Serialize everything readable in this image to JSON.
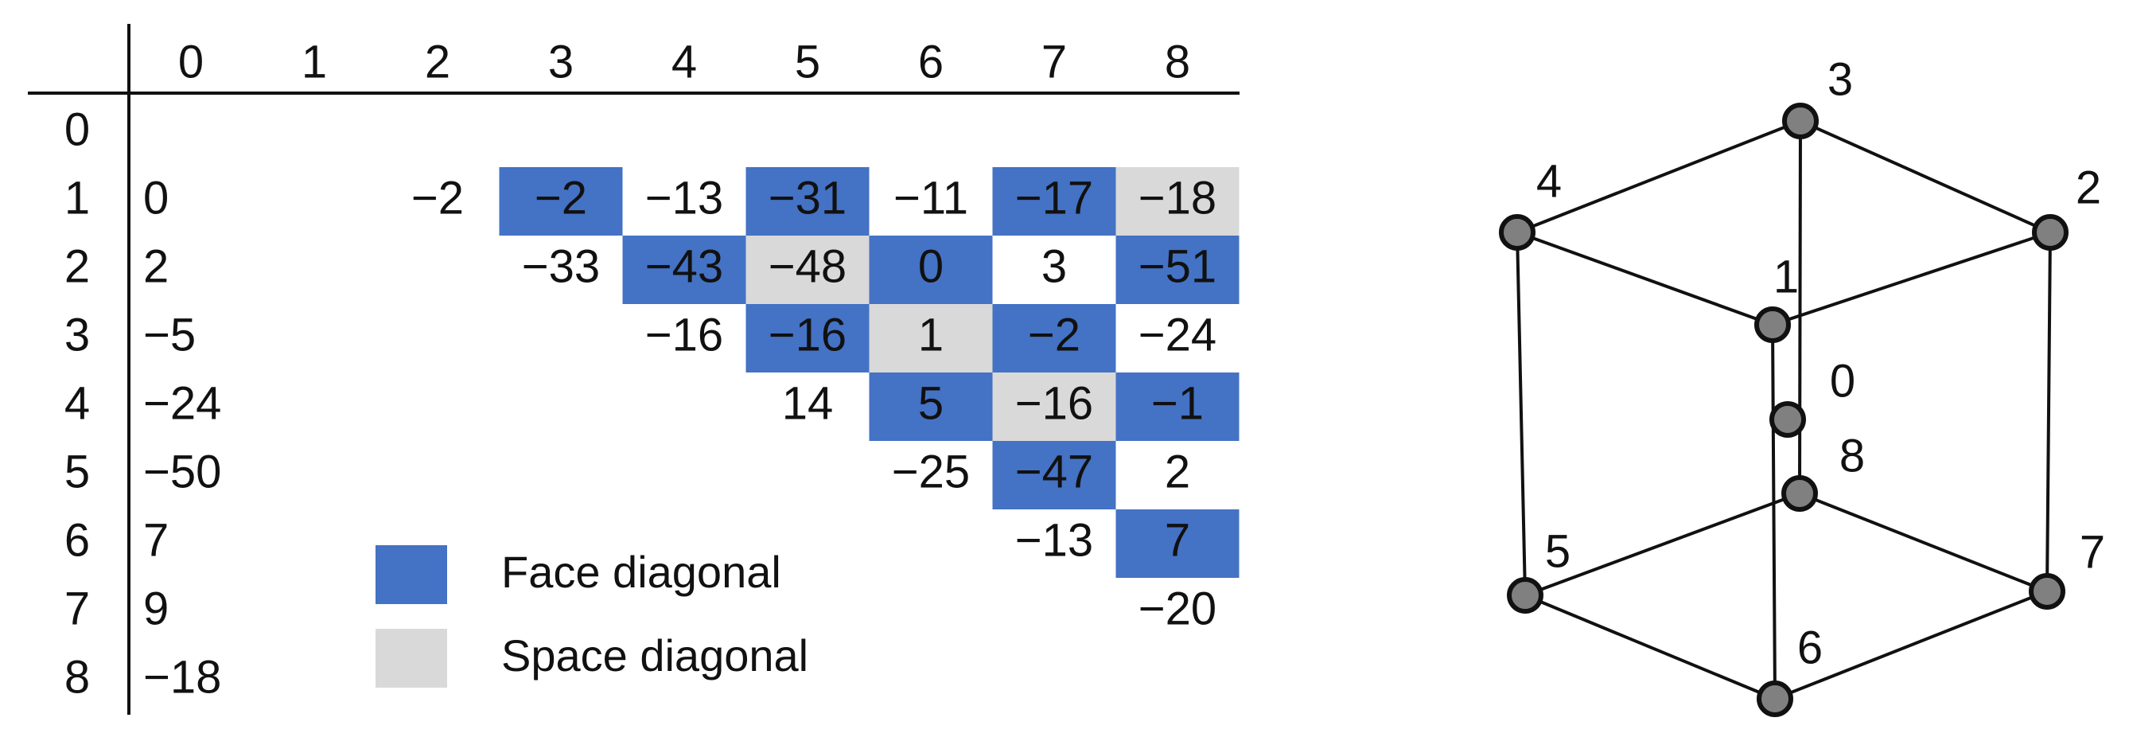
{
  "colors": {
    "face": "#4472C4",
    "space": "#D9D9D9",
    "line": "#111111",
    "node_fill": "#808080"
  },
  "table": {
    "col_headers": [
      "0",
      "1",
      "2",
      "3",
      "4",
      "5",
      "6",
      "7",
      "8"
    ],
    "row_headers": [
      "0",
      "1",
      "2",
      "3",
      "4",
      "5",
      "6",
      "7",
      "8"
    ],
    "cells": [
      {
        "row": 1,
        "col": 0,
        "value": "0",
        "type": "none"
      },
      {
        "row": 1,
        "col": 2,
        "value": "−2",
        "type": "none"
      },
      {
        "row": 1,
        "col": 3,
        "value": "−2",
        "type": "face"
      },
      {
        "row": 1,
        "col": 4,
        "value": "−13",
        "type": "none"
      },
      {
        "row": 1,
        "col": 5,
        "value": "−31",
        "type": "face"
      },
      {
        "row": 1,
        "col": 6,
        "value": "−11",
        "type": "none"
      },
      {
        "row": 1,
        "col": 7,
        "value": "−17",
        "type": "face"
      },
      {
        "row": 1,
        "col": 8,
        "value": "−18",
        "type": "space"
      },
      {
        "row": 2,
        "col": 0,
        "value": "2",
        "type": "none"
      },
      {
        "row": 2,
        "col": 3,
        "value": "−33",
        "type": "none"
      },
      {
        "row": 2,
        "col": 4,
        "value": "−43",
        "type": "face"
      },
      {
        "row": 2,
        "col": 5,
        "value": "−48",
        "type": "space"
      },
      {
        "row": 2,
        "col": 6,
        "value": "0",
        "type": "face"
      },
      {
        "row": 2,
        "col": 7,
        "value": "3",
        "type": "none"
      },
      {
        "row": 2,
        "col": 8,
        "value": "−51",
        "type": "face"
      },
      {
        "row": 3,
        "col": 0,
        "value": "−5",
        "type": "none"
      },
      {
        "row": 3,
        "col": 4,
        "value": "−16",
        "type": "none"
      },
      {
        "row": 3,
        "col": 5,
        "value": "−16",
        "type": "face"
      },
      {
        "row": 3,
        "col": 6,
        "value": "1",
        "type": "space"
      },
      {
        "row": 3,
        "col": 7,
        "value": "−2",
        "type": "face"
      },
      {
        "row": 3,
        "col": 8,
        "value": "−24",
        "type": "none"
      },
      {
        "row": 4,
        "col": 0,
        "value": "−24",
        "type": "none"
      },
      {
        "row": 4,
        "col": 5,
        "value": "14",
        "type": "none"
      },
      {
        "row": 4,
        "col": 6,
        "value": "5",
        "type": "face"
      },
      {
        "row": 4,
        "col": 7,
        "value": "−16",
        "type": "space"
      },
      {
        "row": 4,
        "col": 8,
        "value": "−1",
        "type": "face"
      },
      {
        "row": 5,
        "col": 0,
        "value": "−50",
        "type": "none"
      },
      {
        "row": 5,
        "col": 6,
        "value": "−25",
        "type": "none"
      },
      {
        "row": 5,
        "col": 7,
        "value": "−47",
        "type": "face"
      },
      {
        "row": 5,
        "col": 8,
        "value": "2",
        "type": "none"
      },
      {
        "row": 6,
        "col": 0,
        "value": "7",
        "type": "none"
      },
      {
        "row": 6,
        "col": 7,
        "value": "−13",
        "type": "none"
      },
      {
        "row": 6,
        "col": 8,
        "value": "7",
        "type": "face"
      },
      {
        "row": 7,
        "col": 0,
        "value": "9",
        "type": "none"
      },
      {
        "row": 7,
        "col": 8,
        "value": "−20",
        "type": "none"
      },
      {
        "row": 8,
        "col": 0,
        "value": "−18",
        "type": "none"
      }
    ]
  },
  "legend": [
    {
      "type": "face",
      "label": "Face diagonal"
    },
    {
      "type": "space",
      "label": "Space diagonal"
    }
  ],
  "cube": {
    "nodes": [
      {
        "id": "0",
        "label": "0"
      },
      {
        "id": "1",
        "label": "1"
      },
      {
        "id": "2",
        "label": "2"
      },
      {
        "id": "3",
        "label": "3"
      },
      {
        "id": "4",
        "label": "4"
      },
      {
        "id": "5",
        "label": "5"
      },
      {
        "id": "6",
        "label": "6"
      },
      {
        "id": "7",
        "label": "7"
      },
      {
        "id": "8",
        "label": "8"
      }
    ],
    "edges": [
      [
        "4",
        "3"
      ],
      [
        "3",
        "2"
      ],
      [
        "4",
        "1"
      ],
      [
        "1",
        "2"
      ],
      [
        "4",
        "5"
      ],
      [
        "2",
        "7"
      ],
      [
        "1",
        "6"
      ],
      [
        "3",
        "8"
      ],
      [
        "5",
        "6"
      ],
      [
        "6",
        "7"
      ],
      [
        "5",
        "8"
      ],
      [
        "8",
        "7"
      ]
    ]
  }
}
